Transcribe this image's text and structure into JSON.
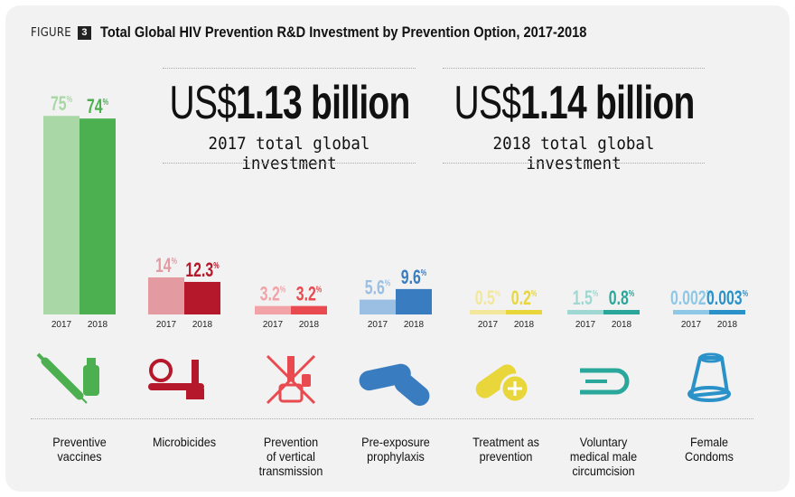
{
  "figure": {
    "label": "FIGURE",
    "number": "3",
    "title": "Total Global HIV Prevention R&D Investment by Prevention Option, 2017-2018"
  },
  "totals": [
    {
      "currency": "US$",
      "amount": "1.13 billion",
      "caption": "2017 total global investment"
    },
    {
      "currency": "US$",
      "amount": "1.14 billion",
      "caption": "2018 total global investment"
    }
  ],
  "chart_data": {
    "type": "bar",
    "title": "Total Global HIV Prevention R&D Investment by Prevention Option, 2017-2018",
    "series_labels": [
      "2017",
      "2018"
    ],
    "unit": "%",
    "categories": [
      {
        "name": "Preventive\nvaccines",
        "icon": "syringe-vial-icon",
        "color_2017": "#a9d7a6",
        "color_2018": "#4caf50",
        "values": [
          75,
          74
        ],
        "labels": [
          "75",
          "74"
        ]
      },
      {
        "name": "Microbicides",
        "icon": "ring-applicator-icon",
        "color_2017": "#e39aa1",
        "color_2018": "#b5182a",
        "values": [
          14,
          12.3
        ],
        "labels": [
          "14",
          "12.3"
        ]
      },
      {
        "name": "Prevention\nof vertical\ntransmission",
        "icon": "no-syringe-bottle-icon",
        "color_2017": "#f2a3a8",
        "color_2018": "#e84a4f",
        "values": [
          3.2,
          3.2
        ],
        "labels": [
          "3.2",
          "3.2"
        ]
      },
      {
        "name": "Pre-exposure\nprophylaxis",
        "icon": "pills-icon",
        "color_2017": "#9bbfe3",
        "color_2018": "#3a7cc0",
        "values": [
          5.6,
          9.6
        ],
        "labels": [
          "5.6",
          "9.6"
        ]
      },
      {
        "name": "Treatment as\nprevention",
        "icon": "pill-tablet-icon",
        "color_2017": "#f2e79a",
        "color_2018": "#e8d63a",
        "values": [
          0.5,
          0.2
        ],
        "labels": [
          "0.5",
          "0.2"
        ]
      },
      {
        "name": "Voluntary\nmedical male\ncircumcision",
        "icon": "circumcision-shape-icon",
        "color_2017": "#9fd8d2",
        "color_2018": "#2aa79b",
        "values": [
          1.5,
          0.8
        ],
        "labels": [
          "1.5",
          "0.8"
        ]
      },
      {
        "name": "Female\nCondoms",
        "icon": "female-condom-icon",
        "color_2017": "#8fc8e6",
        "color_2018": "#2a92c8",
        "values": [
          0.002,
          0.003
        ],
        "labels": [
          "0.002",
          "0.003"
        ]
      }
    ]
  }
}
